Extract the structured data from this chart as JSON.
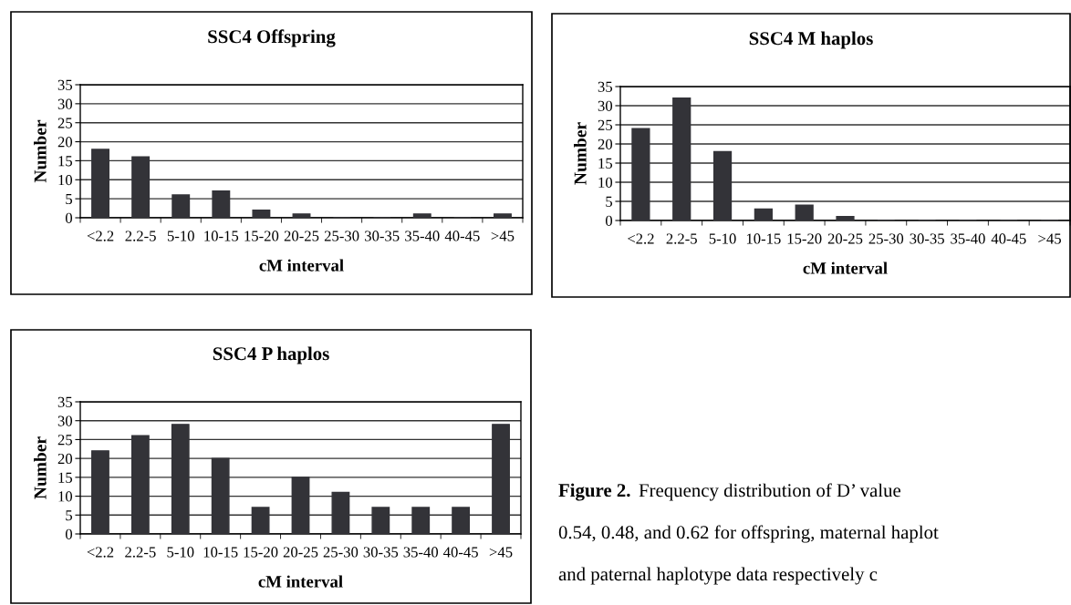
{
  "chart_data": [
    {
      "type": "bar",
      "title": "SSC4 Offspring",
      "xlabel": "cM interval",
      "ylabel": "Number",
      "categories": [
        "<2.2",
        "2.2-5",
        "5-10",
        "10-15",
        "15-20",
        "20-25",
        "25-30",
        "30-35",
        "35-40",
        "40-45",
        ">45"
      ],
      "series": [
        {
          "color": "#333338",
          "values": [
            18,
            16,
            6,
            7,
            2,
            1,
            0,
            0,
            1,
            0,
            1
          ]
        }
      ],
      "ylim": [
        0,
        35
      ],
      "yticks": [
        0,
        5,
        10,
        15,
        20,
        25,
        30,
        35
      ],
      "grid": "y",
      "legend": false
    },
    {
      "type": "bar",
      "title": "SSC4 M haplos",
      "xlabel": "cM interval",
      "ylabel": "Number",
      "categories": [
        "<2.2",
        "2.2-5",
        "5-10",
        "10-15",
        "15-20",
        "20-25",
        "25-30",
        "30-35",
        "35-40",
        "40-45",
        ">45"
      ],
      "series": [
        {
          "color": "#333338",
          "values": [
            24,
            32,
            18,
            3,
            4,
            1,
            0,
            0,
            0,
            0,
            0
          ]
        }
      ],
      "ylim": [
        0,
        35
      ],
      "yticks": [
        0,
        5,
        10,
        15,
        20,
        25,
        30,
        35
      ],
      "grid": "y",
      "legend": false
    },
    {
      "type": "bar",
      "title": "SSC4 P haplos",
      "xlabel": "cM interval",
      "ylabel": "Number",
      "categories": [
        "<2.2",
        "2.2-5",
        "5-10",
        "10-15",
        "15-20",
        "20-25",
        "25-30",
        "30-35",
        "35-40",
        "40-45",
        ">45"
      ],
      "series": [
        {
          "color": "#333338",
          "values": [
            22,
            26,
            29,
            20,
            7,
            15,
            11,
            7,
            7,
            7,
            29
          ]
        }
      ],
      "ylim": [
        0,
        35
      ],
      "yticks": [
        0,
        5,
        10,
        15,
        20,
        25,
        30,
        35
      ],
      "grid": "y",
      "legend": false,
      "annotations": [
        "Figure 2.",
        "Frequency distribution of D’ value",
        "0.54, 0.48, and 0.62 for offspring, maternal haplot",
        "and paternal haplotype data respectively c"
      ]
    }
  ]
}
